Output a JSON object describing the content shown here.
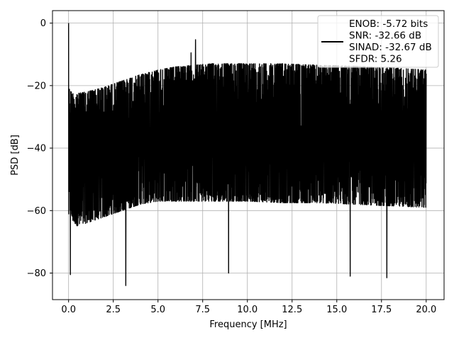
{
  "chart_data": {
    "type": "line",
    "title": "",
    "xlabel": "Frequency [MHz]",
    "ylabel": "PSD [dB]",
    "xlim": [
      -0.9,
      21.0
    ],
    "ylim": [
      -88.5,
      4.0
    ],
    "xticks": [
      0.0,
      2.5,
      5.0,
      7.5,
      10.0,
      12.5,
      15.0,
      17.5,
      20.0
    ],
    "xtick_labels": [
      "0.0",
      "2.5",
      "5.0",
      "7.5",
      "10.0",
      "12.5",
      "15.0",
      "17.5",
      "20.0"
    ],
    "yticks": [
      0,
      -20,
      -40,
      -60,
      -80
    ],
    "ytick_labels": [
      "0",
      "−20",
      "−40",
      "−60",
      "−80"
    ],
    "grid": true,
    "legend_position": "top-right",
    "series": [
      {
        "color": "#000000",
        "x_range": [
          0.0,
          20.0
        ],
        "envelope": {
          "x": [
            0.0,
            0.05,
            0.2,
            0.5,
            1.0,
            2.0,
            3.0,
            4.0,
            5.0,
            6.0,
            7.0,
            8.0,
            10.0,
            12.0,
            14.0,
            16.0,
            18.0,
            20.0
          ],
          "upper": [
            -22.0,
            -21.0,
            -22.5,
            -22.5,
            -22.0,
            -20.5,
            -18.5,
            -16.5,
            -15.0,
            -14.0,
            -13.5,
            -13.0,
            -13.0,
            -13.0,
            -13.5,
            -13.8,
            -14.3,
            -15.0
          ],
          "lower": [
            -62.0,
            -60.0,
            -63.0,
            -65.0,
            -64.0,
            -62.0,
            -60.0,
            -58.0,
            -57.0,
            -57.0,
            -57.0,
            -57.0,
            -57.0,
            -57.5,
            -57.5,
            -58.0,
            -58.5,
            -59.0
          ]
        },
        "peaks": [
          {
            "x": 0.0,
            "y": 0.0
          },
          {
            "x": 7.1,
            "y": -5.3
          },
          {
            "x": 6.85,
            "y": -9.5
          }
        ],
        "dips": [
          {
            "x": 0.1,
            "y": -80.5
          },
          {
            "x": 3.2,
            "y": -84.0
          },
          {
            "x": 8.95,
            "y": -80.0
          },
          {
            "x": 15.75,
            "y": -81.0
          },
          {
            "x": 17.8,
            "y": -81.5
          }
        ]
      }
    ]
  },
  "legend": {
    "lines": [
      "ENOB: -5.72 bits",
      "SNR: -32.66 dB",
      "SINAD: -32.67 dB",
      "SFDR: 5.26"
    ]
  }
}
